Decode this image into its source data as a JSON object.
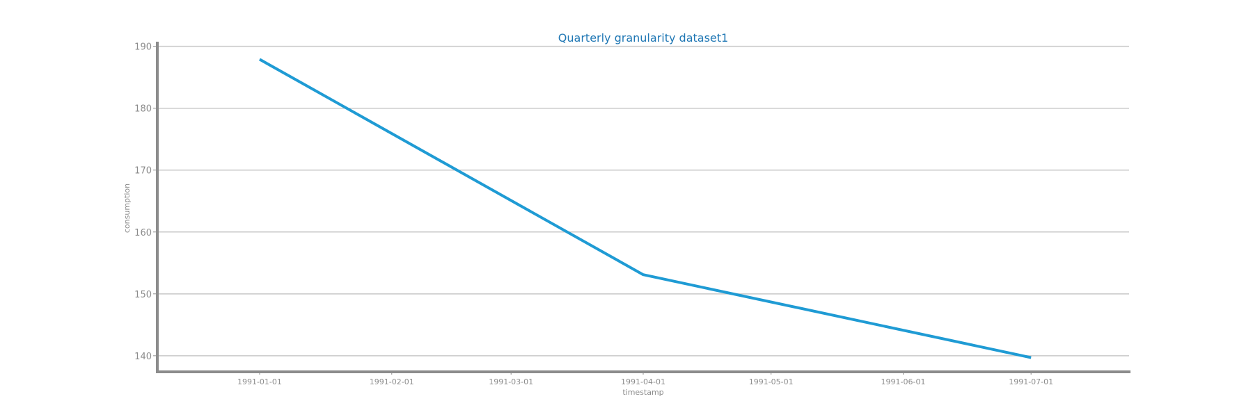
{
  "chart_data": {
    "type": "line",
    "title": "Quarterly granularity dataset1",
    "xlabel": "timestamp",
    "ylabel": "consumption",
    "x_ticks": [
      "1991-01-01",
      "1991-02-01",
      "1991-03-01",
      "1991-04-01",
      "1991-05-01",
      "1991-06-01",
      "1991-07-01"
    ],
    "y_ticks": [
      140,
      150,
      160,
      170,
      180,
      190
    ],
    "ylim": [
      137.4,
      190.3
    ],
    "xlim": [
      "1990-12-08",
      "1991-07-24"
    ],
    "grid": "horizontal",
    "legend": "none",
    "series": [
      {
        "color": "#1f9bd4",
        "x": [
          "1991-01-01",
          "1991-04-01",
          "1991-07-01"
        ],
        "values": [
          187.9,
          153.1,
          139.7
        ]
      }
    ]
  },
  "colors": {
    "title": "#1f77b4",
    "line": "#1f9bd4",
    "axis": "#8c8c8c",
    "grid": "#c8c8c8"
  }
}
